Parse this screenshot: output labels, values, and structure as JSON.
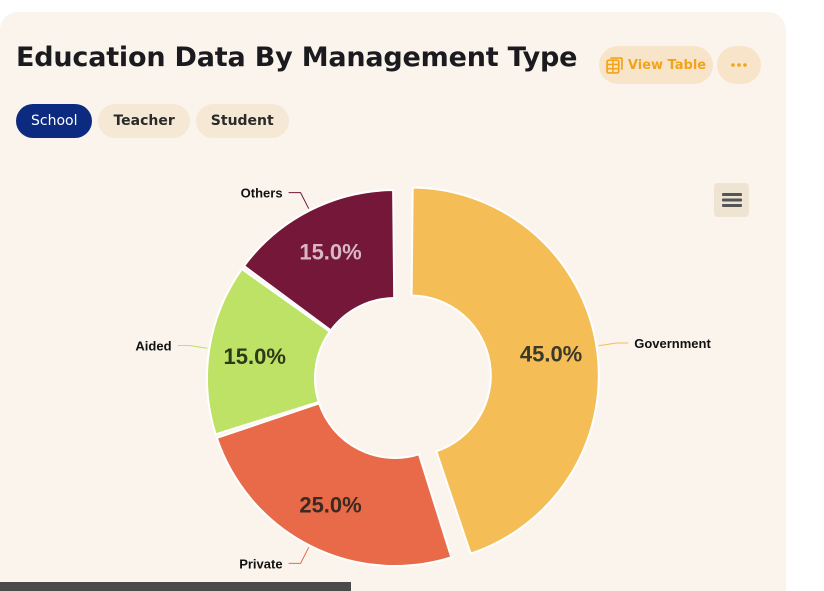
{
  "header": {
    "title": "Education Data By Management Type",
    "view_table_label": "View Table"
  },
  "tabs": [
    {
      "label": "School",
      "active": true
    },
    {
      "label": "Teacher",
      "active": false
    },
    {
      "label": "Student",
      "active": false
    }
  ],
  "chart_data": {
    "type": "pie",
    "variant": "donut",
    "categories": [
      "Government",
      "Private",
      "Aided",
      "Others"
    ],
    "values": [
      45.0,
      25.0,
      15.0,
      15.0
    ],
    "value_labels": [
      "45.0%",
      "25.0%",
      "15.0%",
      "15.0%"
    ],
    "colors": [
      "#f5bd55",
      "#e86a49",
      "#bde265",
      "#741738"
    ],
    "label_colors": [
      "#3a3a2a",
      "#3a2a22",
      "#2e3a16",
      "#d9b8c4"
    ],
    "exploded": "Government"
  },
  "colors": {
    "accent": "#f2a31a",
    "tab_active": "#0b2a80",
    "card_bg": "#faf4ec"
  }
}
